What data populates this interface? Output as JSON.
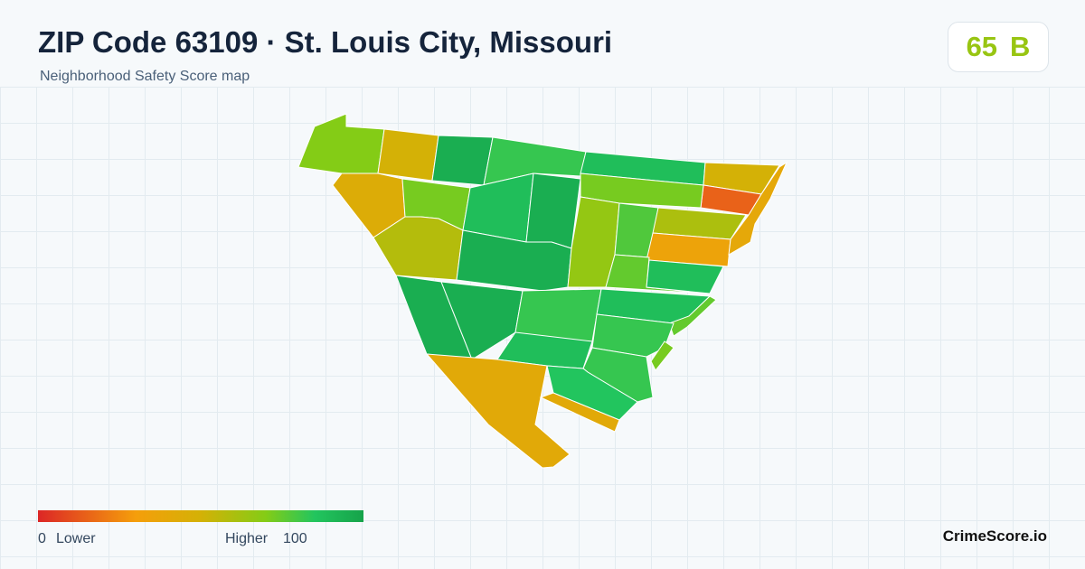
{
  "header": {
    "title": "ZIP Code 63109 · St. Louis City, Missouri",
    "subtitle": "Neighborhood Safety Score map"
  },
  "score": {
    "value": 65,
    "grade": "B"
  },
  "region_scores": [
    70,
    50,
    95,
    82,
    88,
    50,
    15,
    72,
    45,
    72,
    88,
    95,
    58,
    95,
    66,
    78,
    60,
    35,
    40,
    75,
    88,
    95,
    95,
    82,
    88,
    75,
    82,
    88,
    82,
    72,
    42,
    85,
    42
  ],
  "legend": {
    "min": 0,
    "min_label": "Lower",
    "max_label": "Higher",
    "max": 100
  },
  "brand": "CrimeScore.io"
}
